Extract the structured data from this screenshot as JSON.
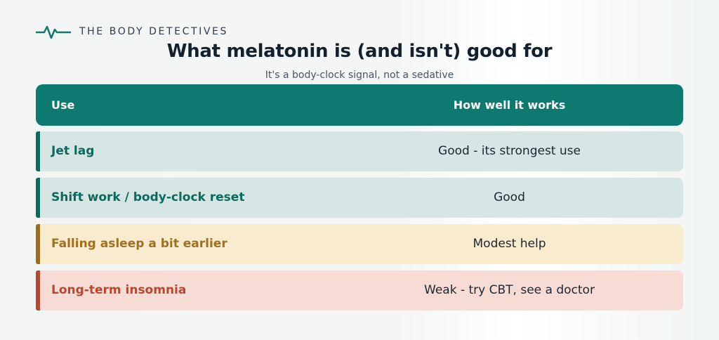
{
  "brand": {
    "name": "THE BODY DETECTIVES",
    "icon": "heartbeat-pulse-icon",
    "icon_color": "#0e7a6f"
  },
  "title": "What melatonin is (and isn't) good for",
  "subtitle": "It's a body-clock signal, not a sedative",
  "table": {
    "header": {
      "use": "Use",
      "effect": "How well it works",
      "bg_color": "#0e7a6f"
    },
    "rows": [
      {
        "use": "Jet lag",
        "effect": "Good - its strongest use",
        "tone": "teal",
        "accent_color": "#0b6a5e",
        "bg_color": "#d6e6e4"
      },
      {
        "use": "Shift work / body-clock reset",
        "effect": "Good",
        "tone": "teal",
        "accent_color": "#0b6a5e",
        "bg_color": "#d6e6e4"
      },
      {
        "use": "Falling asleep a bit earlier",
        "effect": "Modest help",
        "tone": "amber",
        "accent_color": "#9d6d1c",
        "bg_color": "#f9ebcd"
      },
      {
        "use": "Long-term insomnia",
        "effect": "Weak - try CBT, see a doctor",
        "tone": "red",
        "accent_color": "#b5482e",
        "bg_color": "#f7dcd5"
      }
    ]
  }
}
